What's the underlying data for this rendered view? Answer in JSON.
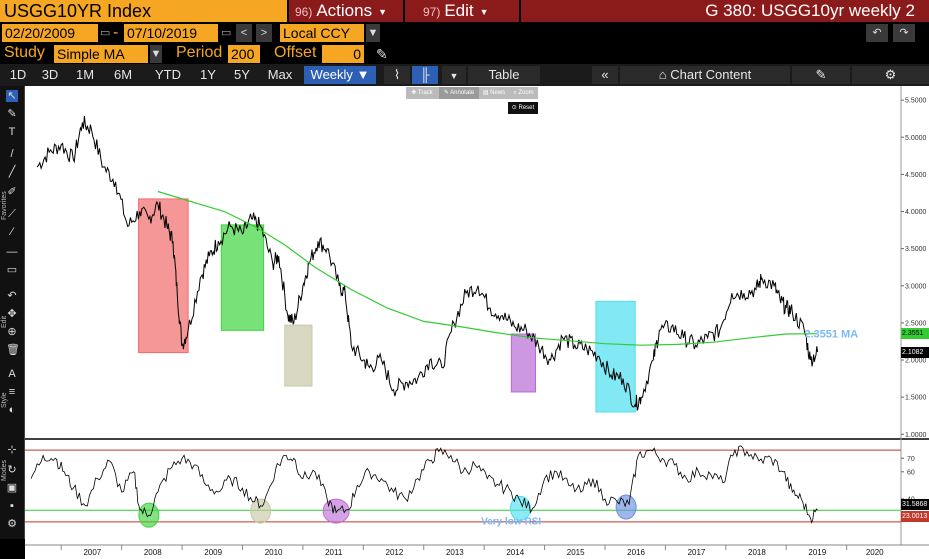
{
  "header": {
    "ticker": "USGG10YR Index",
    "actions_num": "96)",
    "actions_label": "Actions",
    "edit_num": "97)",
    "edit_label": "Edit",
    "chart_title": "G 380: USGG10yr weekly 2"
  },
  "datebar": {
    "start_date": "02/20/2009",
    "separator": "-",
    "end_date": "07/10/2019",
    "currency": "Local CCY"
  },
  "studybar": {
    "study_label": "Study",
    "study_value": "Simple MA",
    "period_label": "Period",
    "period_value": "200",
    "offset_label": "Offset",
    "offset_value": "0"
  },
  "tabs": {
    "ranges": [
      "1D",
      "3D",
      "1M",
      "6M",
      "YTD",
      "1Y",
      "5Y",
      "Max"
    ],
    "frequency": "Weekly",
    "table_label": "Table",
    "chart_content_label": "Chart Content"
  },
  "mini_toolbar": {
    "track": "Track",
    "annotate": "Annotate",
    "news": "News",
    "zoom": "Zoom",
    "reset": "Reset"
  },
  "sidebar": {
    "favorites_label": "Favorites",
    "edit_label": "Edit",
    "style_label": "Style",
    "modes_label": "Modes"
  },
  "colors": {
    "amber": "#f5a623",
    "title_red": "#8b1a1a",
    "active_tab": "#2d5fb4",
    "price_line": "#000000",
    "ma_line": "#33cc33",
    "ma_label": "#7ab8f5",
    "rsi_upper_line": "#c0392b",
    "rsi_lower_line": "#33cc33"
  },
  "icons": [
    "pencil-icon",
    "left-arrow-icon",
    "right-arrow-icon",
    "undo-icon",
    "redo-icon",
    "double-left-chevron-icon",
    "chart-content-icon",
    "edit-chart-icon",
    "gear-icon",
    "line-chart-icon",
    "bar-chart-icon",
    "cursor-icon",
    "trash-icon",
    "zoom-icon"
  ],
  "annotations": {
    "ma_value_label": "2.3551 MA",
    "rsi_note": "Very low RSI",
    "price_box_ma": "2.3551",
    "price_box_last": "2.1082",
    "rsi_box_1": "31.5868",
    "rsi_box_2": "23.0013"
  },
  "chart_data": [
    {
      "type": "line",
      "name": "price-panel",
      "y_ticks": [
        "5.5000",
        "5.0000",
        "4.5000",
        "4.0000",
        "3.5000",
        "3.0000",
        "2.5000",
        "2.0000",
        "1.5000",
        "1.0000"
      ],
      "ylim": [
        0.95,
        5.65
      ],
      "x_ticks": [
        "2007",
        "2008",
        "2009",
        "2010",
        "2011",
        "2012",
        "2013",
        "2014",
        "2015",
        "2016",
        "2017",
        "2018",
        "2019",
        "2020"
      ],
      "series": [
        {
          "x": [
            2006.6,
            2006.8,
            2007.0,
            2007.2,
            2007.35,
            2007.5,
            2007.7,
            2007.9,
            2008.1,
            2008.3,
            2008.45,
            2008.6,
            2008.75,
            2008.85,
            2008.92,
            2009.0,
            2009.1,
            2009.3,
            2009.45,
            2009.6,
            2009.8,
            2010.0,
            2010.15,
            2010.3,
            2010.5,
            2010.6,
            2010.75,
            2010.85,
            2011.0,
            2011.1,
            2011.25,
            2011.4,
            2011.6,
            2011.7,
            2011.8,
            2012.0,
            2012.1,
            2012.3,
            2012.5,
            2012.7,
            2012.9,
            2013.1,
            2013.3,
            2013.5,
            2013.7,
            2013.9,
            2014.1,
            2014.3,
            2014.5,
            2014.7,
            2014.9,
            2015.1,
            2015.3,
            2015.5,
            2015.7,
            2015.9,
            2016.1,
            2016.3,
            2016.5,
            2016.6,
            2016.8,
            2016.9,
            2017.1,
            2017.3,
            2017.5,
            2017.7,
            2017.9,
            2018.1,
            2018.3,
            2018.5,
            2018.6,
            2018.8,
            2018.9,
            2019.0,
            2019.1,
            2019.3,
            2019.4,
            2019.52
          ],
          "values": [
            4.6,
            4.8,
            4.9,
            4.7,
            5.2,
            5.1,
            4.6,
            4.4,
            3.8,
            4.0,
            3.9,
            4.1,
            3.8,
            3.6,
            2.9,
            2.2,
            2.4,
            3.1,
            3.4,
            3.6,
            3.8,
            3.7,
            3.9,
            3.8,
            3.3,
            3.4,
            2.6,
            2.5,
            3.0,
            3.3,
            3.6,
            3.5,
            3.0,
            2.9,
            2.2,
            2.0,
            1.9,
            2.0,
            1.6,
            1.7,
            1.75,
            2.0,
            1.9,
            2.5,
            2.9,
            3.0,
            2.7,
            2.6,
            2.45,
            2.4,
            2.2,
            2.0,
            2.3,
            2.2,
            2.15,
            2.05,
            1.8,
            1.75,
            1.4,
            1.5,
            2.0,
            2.4,
            2.45,
            2.3,
            2.2,
            2.3,
            2.4,
            2.9,
            2.9,
            2.95,
            3.1,
            3.0,
            2.8,
            2.7,
            2.65,
            2.4,
            2.0,
            2.1082
          ]
        },
        {
          "name": "MA",
          "x": [
            2008.6,
            2009.2,
            2009.7,
            2010.2,
            2010.7,
            2011.2,
            2011.8,
            2012.4,
            2013.0,
            2013.6,
            2014.2,
            2014.8,
            2015.4,
            2016.0,
            2016.6,
            2017.2,
            2017.8,
            2018.4,
            2019.0,
            2019.52
          ],
          "values": [
            4.27,
            4.12,
            4.0,
            3.8,
            3.55,
            3.25,
            2.95,
            2.7,
            2.52,
            2.45,
            2.37,
            2.3,
            2.26,
            2.22,
            2.2,
            2.21,
            2.24,
            2.3,
            2.35,
            2.3551
          ]
        }
      ]
    },
    {
      "type": "line",
      "name": "rsi-panel",
      "y_ticks": [
        "70",
        "60",
        "40"
      ],
      "ylim": [
        20,
        82
      ],
      "reference_lines": [
        76,
        31.5868,
        23.0013
      ],
      "series": [
        {
          "x": [
            2006.5,
            2006.7,
            2006.9,
            2007.05,
            2007.2,
            2007.4,
            2007.6,
            2007.8,
            2008.0,
            2008.2,
            2008.3,
            2008.45,
            2008.6,
            2008.8,
            2009.0,
            2009.2,
            2009.4,
            2009.6,
            2009.8,
            2010.0,
            2010.2,
            2010.35,
            2010.55,
            2010.7,
            2010.85,
            2011.0,
            2011.2,
            2011.4,
            2011.55,
            2011.75,
            2011.9,
            2012.1,
            2012.3,
            2012.5,
            2012.7,
            2012.9,
            2013.1,
            2013.25,
            2013.45,
            2013.65,
            2013.85,
            2014.05,
            2014.25,
            2014.45,
            2014.6,
            2014.8,
            2015.0,
            2015.2,
            2015.4,
            2015.6,
            2015.8,
            2016.0,
            2016.2,
            2016.4,
            2016.55,
            2016.75,
            2016.95,
            2017.15,
            2017.35,
            2017.55,
            2017.75,
            2017.95,
            2018.15,
            2018.35,
            2018.55,
            2018.75,
            2018.95,
            2019.1,
            2019.25,
            2019.4,
            2019.52
          ],
          "values": [
            55,
            72,
            70,
            60,
            48,
            35,
            55,
            68,
            45,
            60,
            32,
            28,
            45,
            62,
            70,
            65,
            50,
            45,
            55,
            48,
            38,
            36,
            62,
            72,
            70,
            55,
            60,
            40,
            30,
            32,
            50,
            60,
            55,
            45,
            40,
            55,
            68,
            75,
            72,
            60,
            65,
            55,
            50,
            45,
            38,
            33,
            55,
            60,
            50,
            45,
            55,
            40,
            38,
            36,
            72,
            76,
            70,
            65,
            55,
            60,
            58,
            52,
            76,
            75,
            68,
            70,
            60,
            45,
            40,
            26,
            31.5868
          ]
        }
      ]
    }
  ]
}
